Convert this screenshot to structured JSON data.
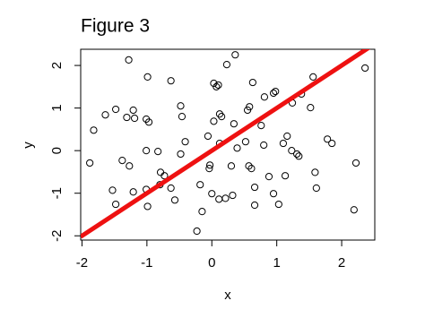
{
  "chart_data": {
    "type": "scatter",
    "title": "Figure 3",
    "x_label": "x",
    "y_label": "y",
    "x": [
      -1.28,
      0.36,
      0.23,
      2.36,
      -0.99,
      -0.63,
      0.03,
      0.1,
      0.07,
      0.63,
      1.56,
      0.98,
      0.95,
      0.58,
      0.55,
      0.81,
      1.38,
      1.24,
      1.52,
      -1.48,
      -1.64,
      -1.31,
      -1.21,
      -1.19,
      -1.01,
      -0.97,
      -0.48,
      -0.46,
      0.12,
      0.15,
      0.03,
      0.34,
      0.76,
      -1.82,
      -0.06,
      0.12,
      0.39,
      -0.41,
      0.52,
      0.8,
      1.1,
      1.16,
      1.78,
      1.85,
      1.23,
      1.31,
      1.34,
      -0.83,
      -0.48,
      -1.01,
      -1.88,
      -1.38,
      -1.27,
      -0.79,
      -0.73,
      -0.03,
      -0.04,
      0.61,
      0.57,
      0.3,
      0.88,
      1.13,
      1.59,
      2.22,
      -1.53,
      -1.01,
      -1.21,
      -0.8,
      -0.63,
      -0.18,
      0.0,
      0.11,
      0.21,
      0.32,
      0.66,
      0.95,
      1.61,
      -1.48,
      -0.99,
      1.03,
      0.66,
      2.19,
      -0.15,
      -0.57,
      -0.23
    ],
    "values": [
      2.13,
      2.25,
      2.02,
      1.94,
      1.73,
      1.64,
      1.58,
      1.54,
      1.5,
      1.6,
      1.73,
      1.39,
      1.35,
      1.03,
      0.95,
      1.26,
      1.33,
      1.12,
      1.01,
      0.97,
      0.84,
      0.78,
      0.95,
      0.76,
      0.74,
      0.67,
      1.05,
      0.8,
      0.86,
      0.8,
      0.69,
      0.63,
      0.59,
      0.48,
      0.34,
      0.17,
      0.06,
      0.21,
      0.21,
      0.13,
      0.17,
      0.34,
      0.27,
      0.17,
      0.0,
      -0.08,
      -0.13,
      -0.02,
      -0.08,
      0.0,
      -0.29,
      -0.23,
      -0.36,
      -0.51,
      -0.59,
      -0.34,
      -0.42,
      -0.42,
      -0.36,
      -0.36,
      -0.61,
      -0.59,
      -0.51,
      -0.29,
      -0.93,
      -0.91,
      -0.97,
      -0.8,
      -0.88,
      -0.8,
      -1.01,
      -1.14,
      -1.12,
      -1.05,
      -0.86,
      -1.01,
      -0.88,
      -1.26,
      -1.31,
      -1.26,
      -1.28,
      -1.39,
      -1.43,
      -1.16,
      -1.89
    ],
    "color": "#000000",
    "line": {
      "intercept": 0,
      "slope": 1,
      "color": "#ee1111"
    },
    "xlim": [
      -2.02,
      2.51
    ],
    "ylim": [
      -2.1,
      2.38
    ],
    "xticks": [
      -2,
      -1,
      0,
      1,
      2
    ],
    "yticks": [
      -2,
      -1,
      0,
      1,
      2
    ]
  }
}
